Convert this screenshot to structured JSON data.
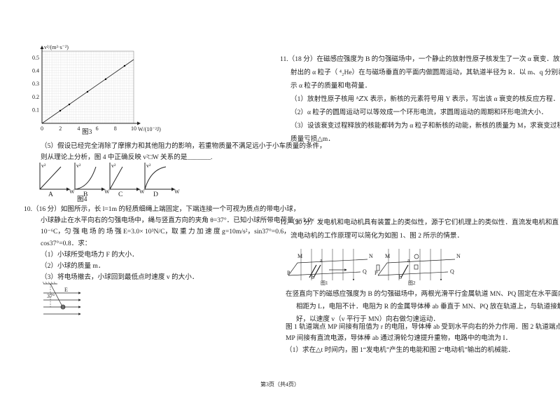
{
  "fig3": {
    "y_label": "v²/(m²·s⁻²)",
    "x_label": "W/(10⁻²J)",
    "y_ticks": [
      "0.5",
      "0.4",
      "0.3",
      "0.2",
      "0.1"
    ],
    "x_ticks": [
      "0",
      "2",
      "4",
      "6",
      "8",
      "10"
    ],
    "caption": "图3"
  },
  "q5": {
    "lines": [
      "（5）假设已经完全消除了摩擦力和其他阻力的影响，若重物质量不满足远小于小车质量的条件，",
      "则从理论上分析，图 4 中正确反映 v²□W 关系的是_______."
    ],
    "axis_label": "v²",
    "x_axis": "W",
    "options": [
      "A",
      "B",
      "C",
      "D"
    ],
    "caption": "图4"
  },
  "q10": {
    "lines": [
      "10.（16 分）如图所示，长 l=1m 的轻质细绳上端固定，下端连接一个可视为质点的带电小球，",
      "小球静止在水平向右的匀强电场中，绳与竖直方向的夹角 θ=37°．已知小球所带电荷量 q=1.0×",
      "10⁻⁶C，匀 强 电 场 的 场 强 E=3.0× 10³N/C，取 重 力 加 速 度 g=10m/s²，sin37°=0.6，",
      "cos37°=0.8．求：",
      "（1）小球所受电场力 F 的大小．",
      "（2）小球的质量 m．",
      "（3）将电场撤去，小球回到最低点时速度 v 的大小．"
    ],
    "fig_angle": "37°",
    "fig_field": "E"
  },
  "q11": {
    "lines": [
      "11.（18 分）在磁感应强度为 B 的匀强磁场中，一个静止的放射性原子核发生了一次 α 衰变．放",
      "射出的 α 粒子（ ⁴₂He）在与磁场垂直的平面内做圆周运动，其轨道半径为 R．以 m、q 分别表",
      "示 α 粒子的质量和电荷量．",
      "（1）放射性原子核用 ᴬ𝑍X 表示，新核的元素符号用 Y 表示，写出该 α 衰变的核反应方程．",
      "（2）α 粒子的圆周运动可以等效成一个环形电流，求圆周运动的周期和环形电流大小．",
      "（3）设该衰变过程释放的核能都转为为 α 粒子和新核的动能，新核的质量为 M，求衰变过程的",
      "质量亏损△m．"
    ]
  },
  "q12": {
    "intro": [
      "12.（20 分）发电机和电动机具有装置上的类似性，源于它们机理上的类似性．直流发电机和直",
      "流电动机的工作原理可以简化为如图 1、图 2 所示的情景．"
    ],
    "fig_labels": [
      "M",
      "N",
      "P",
      "Q",
      "a",
      "b"
    ],
    "captions": [
      "图1",
      "图2"
    ],
    "lines": [
      "在竖直向下的磁感应强度为 B 的匀强磁场中，两根光滑平行金属轨道 MN、PQ 固定在水平面内，",
      "相距为 L，电阻不计．电阻为 R 的金属导体棒 ab 垂直于 MN、PQ 放在轨道上，与轨道接触良",
      "好，以速度 v（v 平行于 MN）向右做匀速运动．",
      "图 1 轨道端点 MP 间接有阻值为 r 的电阻，导体棒 ab 受到水平向右的外力作用．图 2 轨道端点",
      "MP 间接有直流电源，导体棒 ab 通过滑轮匀速提升重物，电路中的电流为 I．",
      "（1）求在△t 时间内，图 1“发电机”产生的电能和图 2“电动机”输出的机械能．"
    ]
  },
  "footer": "第3页（共4页）"
}
